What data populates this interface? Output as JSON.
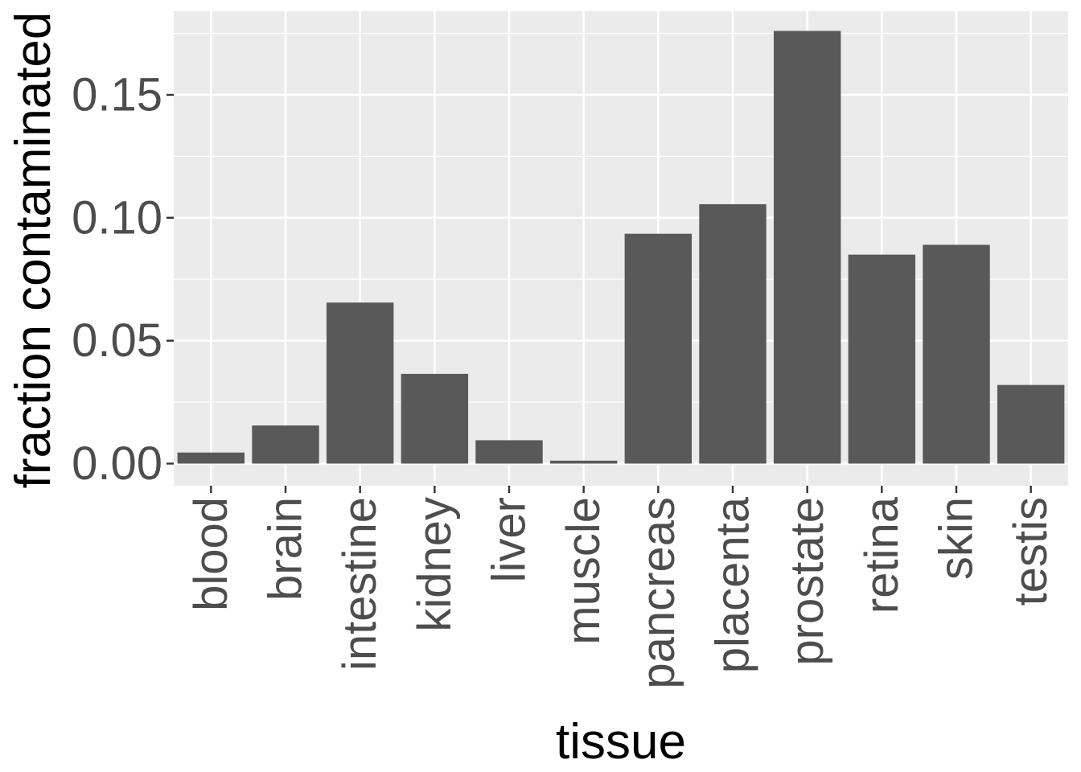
{
  "chart_data": {
    "type": "bar",
    "categories": [
      "blood",
      "brain",
      "intestine",
      "kidney",
      "liver",
      "muscle",
      "pancreas",
      "placenta",
      "prostate",
      "retina",
      "skin",
      "testis"
    ],
    "values": [
      0.0045,
      0.0155,
      0.0655,
      0.0365,
      0.0095,
      0.0012,
      0.0935,
      0.1055,
      0.176,
      0.085,
      0.089,
      0.032
    ],
    "title": "",
    "xlabel": "tissue",
    "ylabel": "fraction contaminated",
    "ylim": [
      -0.009,
      0.184
    ],
    "yticks": [
      0,
      0.05,
      0.1,
      0.15
    ],
    "ytick_labels": [
      "0.00",
      "0.05",
      "0.10",
      "0.15"
    ],
    "grid": true,
    "legend": "none",
    "colors": {
      "bar": "#595959",
      "panel_background": "#ebebeb",
      "grid": "#ffffff",
      "tick_label": "#4d4d4d",
      "tick": "#333333",
      "axis_title": "#000000"
    }
  }
}
